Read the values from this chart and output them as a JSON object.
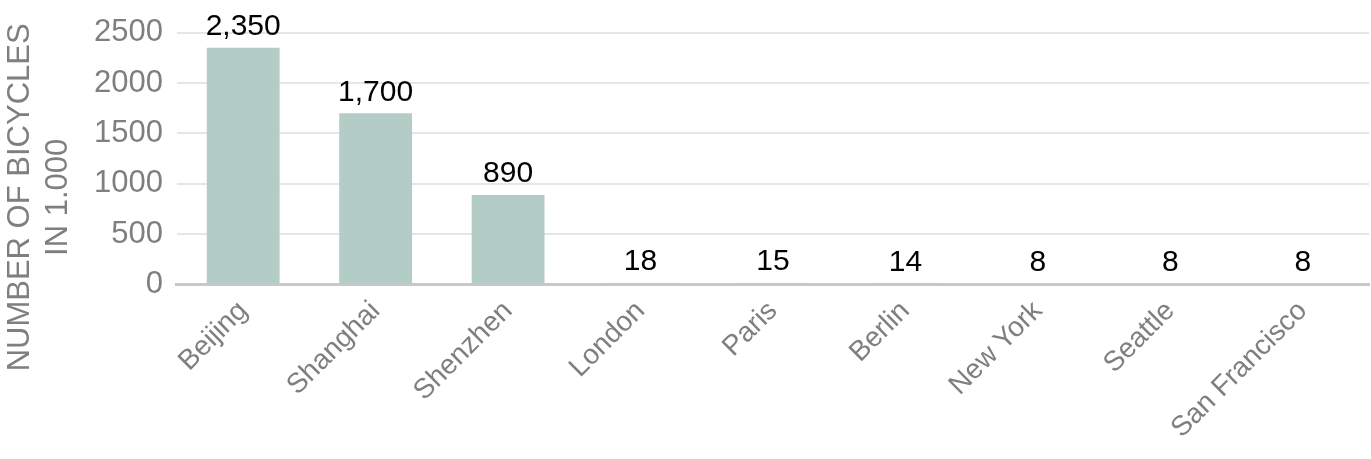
{
  "chart_data": {
    "type": "bar",
    "ylabel": "NUMBER OF BICYCLES IN 1.000",
    "categories": [
      "Beijing",
      "Shanghai",
      "Shenzhen",
      "London",
      "Paris",
      "Berlin",
      "New York",
      "Seattle",
      "San Francisco"
    ],
    "values": [
      2350,
      1700,
      890,
      18,
      15,
      14,
      8,
      8,
      8
    ],
    "color": "#b3ccc5",
    "value_labels": [
      "2,350",
      "1,700",
      "890",
      "18",
      "15",
      "14",
      "8",
      "8",
      "8"
    ],
    "ylim": [
      0,
      2500
    ],
    "yticks": [
      0,
      500,
      1000,
      1500,
      2000,
      2500
    ],
    "grid": "y"
  }
}
